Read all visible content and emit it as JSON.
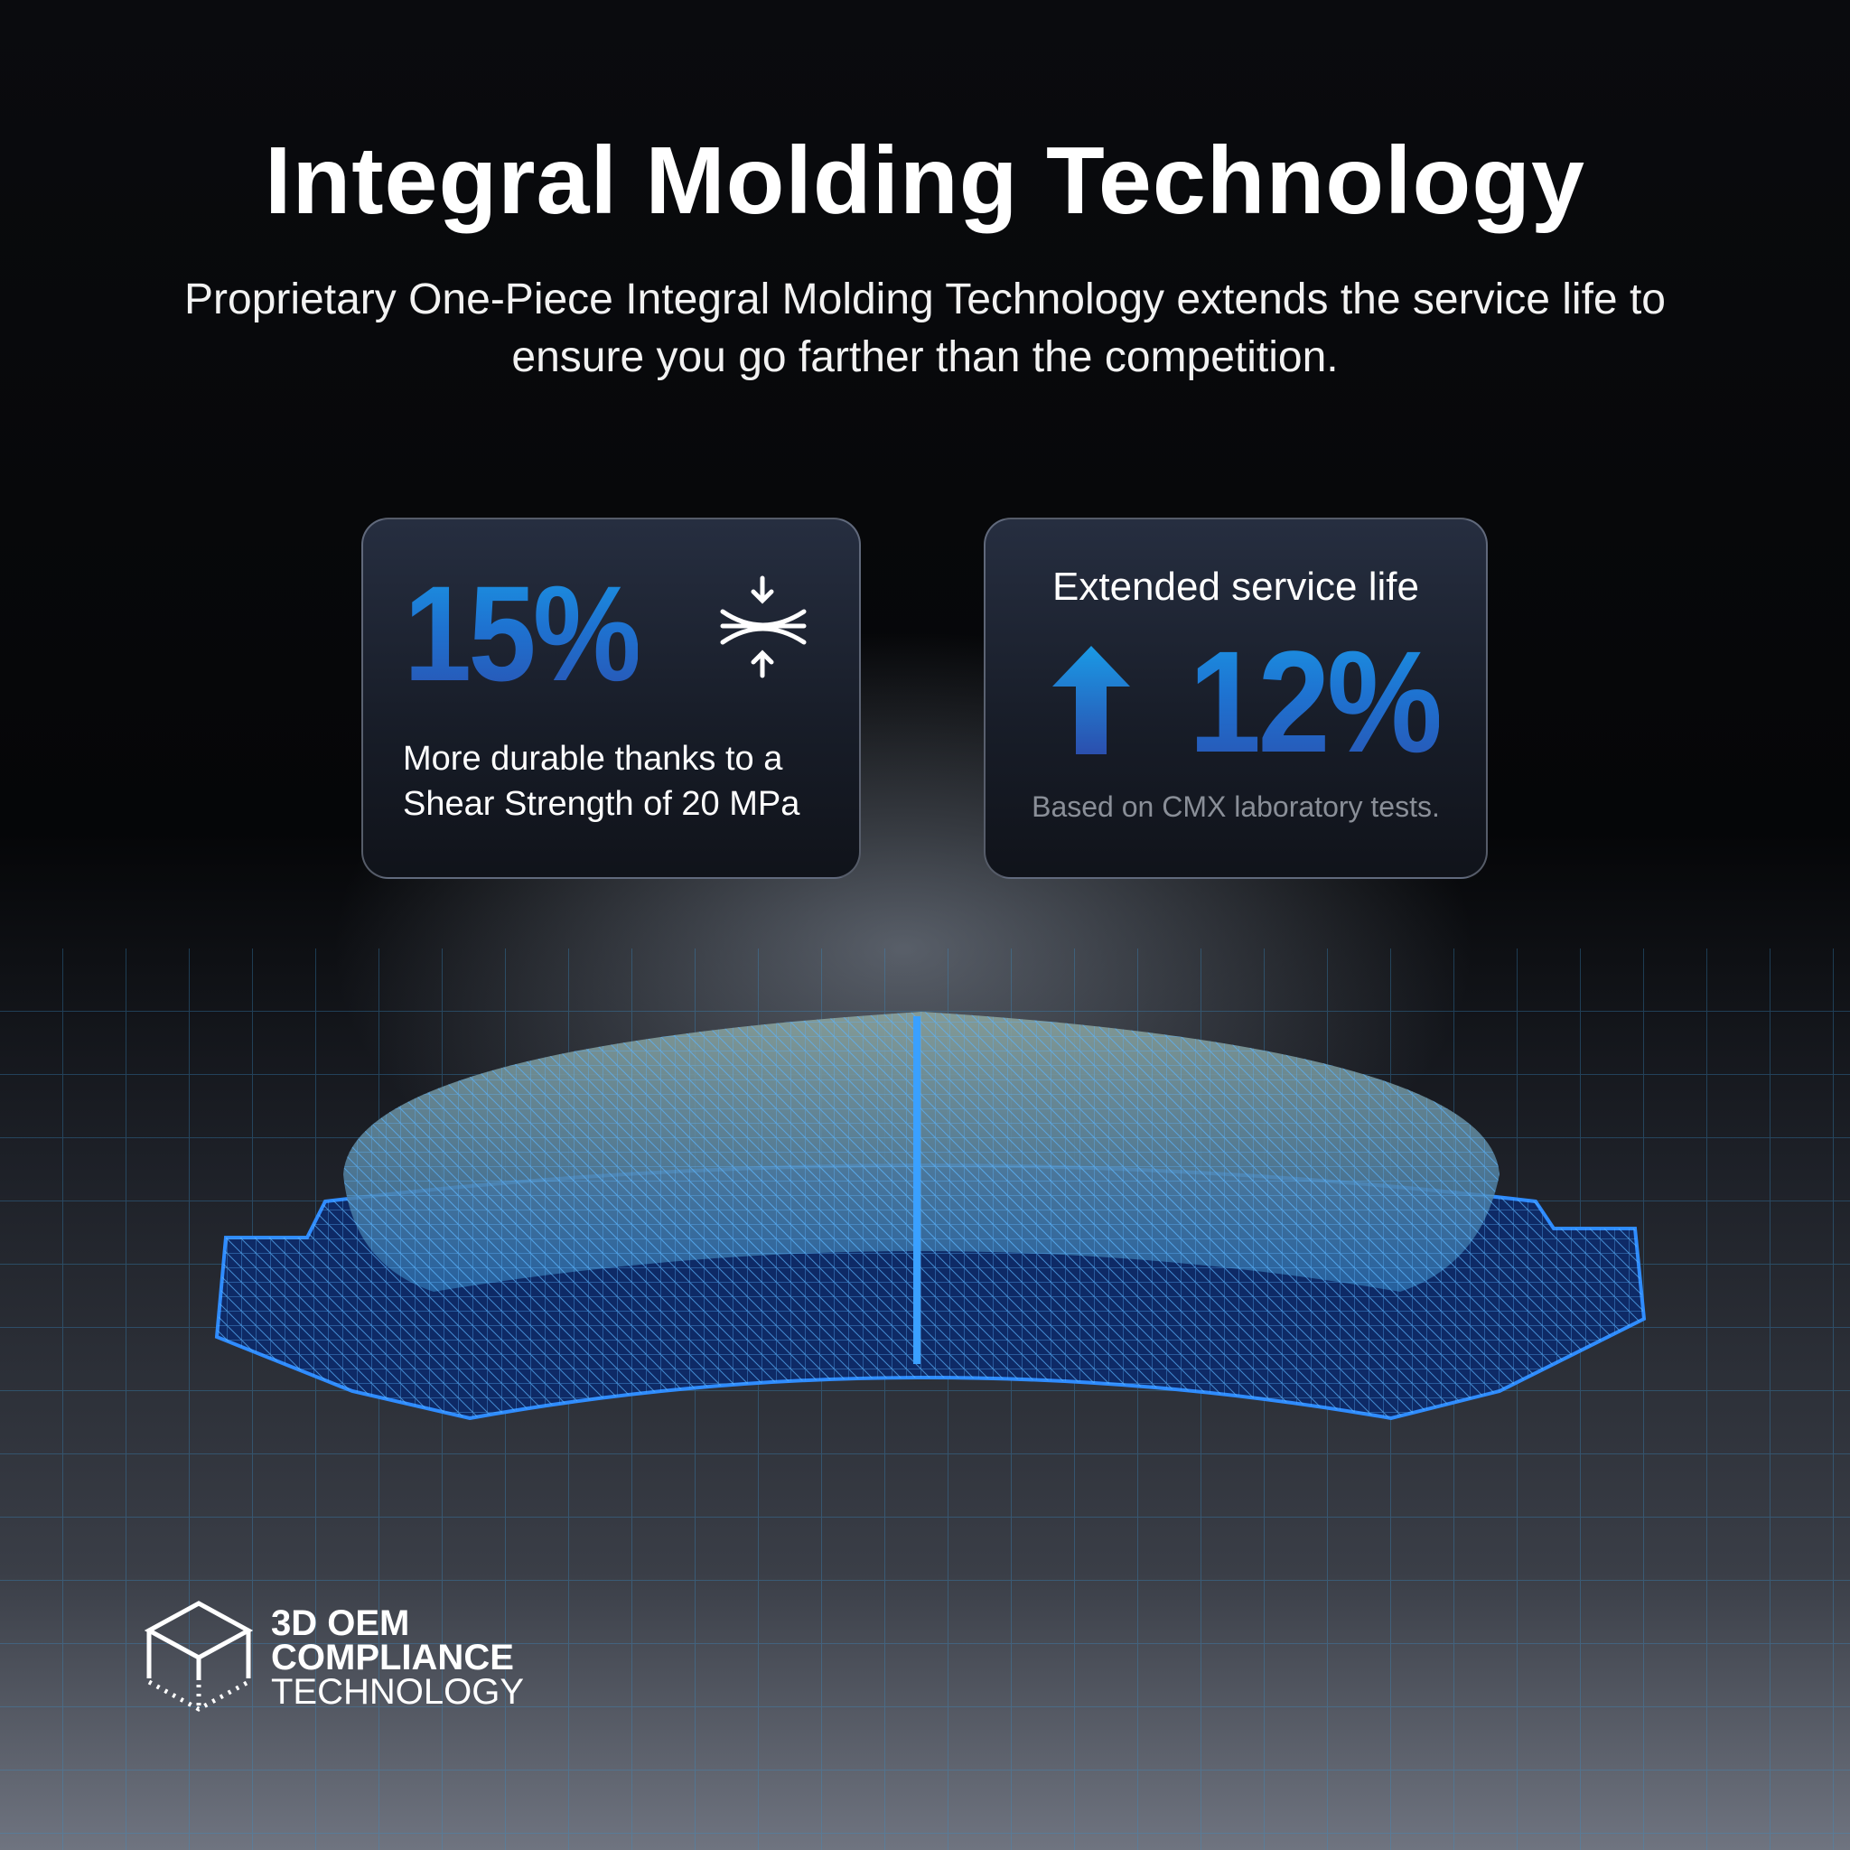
{
  "title": "Integral Molding Technology",
  "subtitle": "Proprietary One-Piece Integral Molding Technology extends the service life to ensure you go farther than the competition.",
  "cards": [
    {
      "value": "15%",
      "icon": "compression-icon",
      "text_line1": "More durable thanks to a",
      "text_line2": "Shear Strength of 20 MPa"
    },
    {
      "heading": "Extended service life",
      "icon": "arrow-up-icon",
      "value": "12%",
      "note": "Based on CMX laboratory tests."
    }
  ],
  "badge": {
    "line1": "3D OEM",
    "line2": "COMPLIANCE",
    "line3": "TECHNOLOGY",
    "icon": "cube-icon"
  },
  "colors": {
    "accent_blue": "#1a8fe0",
    "deep_blue": "#2b4fae",
    "background": "#050608"
  }
}
